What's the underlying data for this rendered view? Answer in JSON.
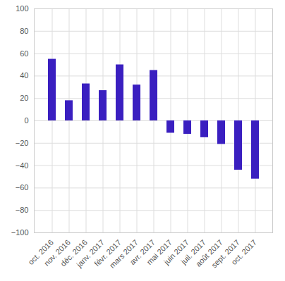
{
  "chart_data": {
    "type": "bar",
    "categories": [
      "oct. 2016",
      "nov. 2016",
      "déc. 2016",
      "janv. 2017",
      "févr. 2017",
      "mars 2017",
      "avr. 2017",
      "mai 2017",
      "juin 2017",
      "juil. 2017",
      "août 2017",
      "sept. 2017",
      "oct. 2017"
    ],
    "values": [
      55,
      18,
      33,
      27,
      50,
      32,
      45,
      -11,
      -12,
      -15,
      -21,
      -44,
      -52
    ],
    "color": "#3a1fc0",
    "ylim": [
      -100,
      100
    ],
    "yticks": [
      -100,
      -80,
      -60,
      -40,
      -20,
      0,
      20,
      40,
      60,
      80,
      100
    ],
    "grid": true
  }
}
